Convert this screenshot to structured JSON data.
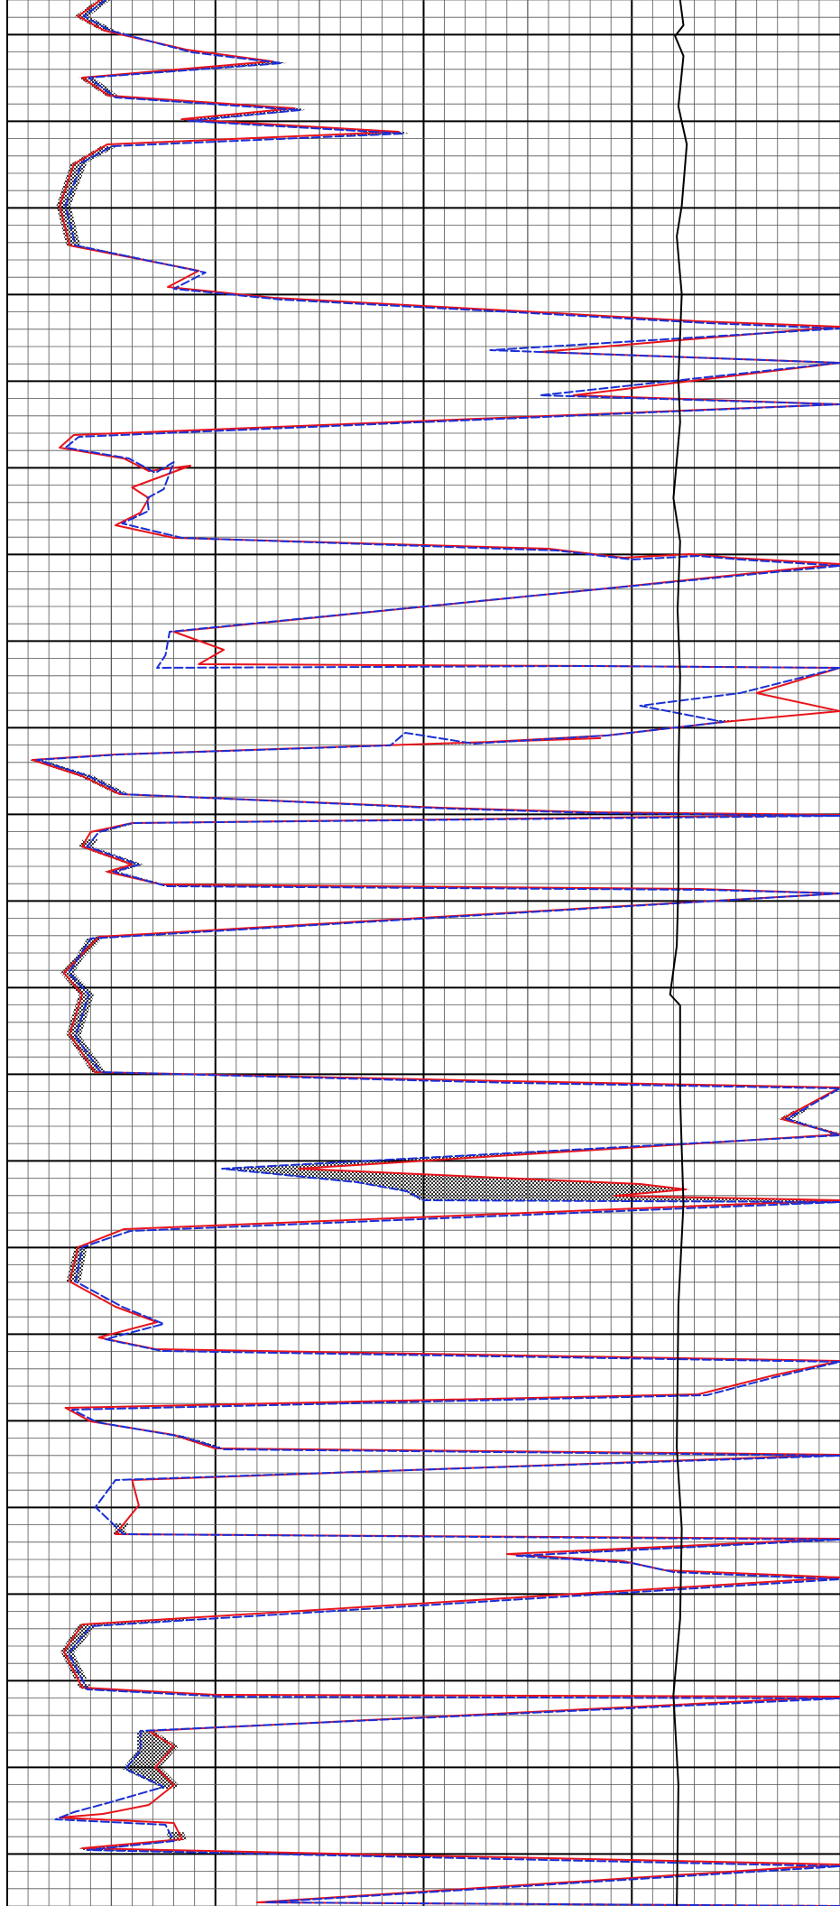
{
  "chart_data": {
    "type": "line",
    "title": "",
    "xlabel": "",
    "ylabel": "",
    "grid": true,
    "x_range": [
      0,
      1
    ],
    "y_range": [
      0,
      2112
    ],
    "colors": {
      "background": "#ffffff",
      "grid_major": "#000000",
      "grid_minor": "#555555",
      "shade_fill": "#444444",
      "series_a": "#e8141b",
      "series_b": "#1a2fd6",
      "series_c": "#000000"
    },
    "series": [
      {
        "id": "series-a",
        "style": "solid",
        "color": "#e8141b",
        "points": [
          [
            0.112,
            0
          ],
          [
            0.085,
            18
          ],
          [
            0.117,
            34
          ],
          [
            0.215,
            55
          ],
          [
            0.318,
            68
          ],
          [
            0.09,
            86
          ],
          [
            0.122,
            106
          ],
          [
            0.345,
            120
          ],
          [
            0.21,
            132
          ],
          [
            0.47,
            146
          ],
          [
            0.12,
            160
          ],
          [
            0.08,
            182
          ],
          [
            0.063,
            228
          ],
          [
            0.075,
            272
          ],
          [
            0.23,
            300
          ],
          [
            0.193,
            318
          ],
          [
            0.32,
            330
          ],
          [
            0.64,
            346
          ],
          [
            0.83,
            356
          ],
          [
            1.0,
            362
          ],
          [
            0.64,
            390
          ],
          [
            1.0,
            402
          ],
          [
            0.68,
            438
          ],
          [
            1.0,
            448
          ],
          [
            0.08,
            482
          ],
          [
            0.063,
            496
          ],
          [
            0.14,
            508
          ],
          [
            0.17,
            522
          ],
          [
            0.22,
            516
          ],
          [
            0.15,
            540
          ],
          [
            0.17,
            552
          ],
          [
            0.16,
            568
          ],
          [
            0.13,
            582
          ],
          [
            0.2,
            596
          ],
          [
            0.65,
            608
          ],
          [
            0.74,
            618
          ],
          [
            0.82,
            614
          ],
          [
            0.87,
            618
          ],
          [
            1.0,
            625
          ],
          [
            0.72,
            652
          ],
          [
            0.2,
            700
          ],
          [
            0.26,
            720
          ],
          [
            0.23,
            736
          ],
          [
            0.7,
            738
          ],
          [
            1.0,
            740
          ],
          [
            0.9,
            768
          ],
          [
            1.0,
            788
          ],
          [
            0.86,
            800
          ],
          [
            0.72,
            815
          ],
          [
            0.58,
            822
          ],
          [
            0.712,
            818
          ],
          [
            0.45,
            826
          ],
          [
            0.13,
            836
          ],
          [
            0.03,
            842
          ],
          [
            0.09,
            860
          ],
          [
            0.135,
            880
          ],
          [
            0.52,
            895
          ],
          [
            0.7,
            900
          ],
          [
            1.0,
            903
          ],
          [
            0.15,
            912
          ],
          [
            0.1,
            922
          ],
          [
            0.09,
            938
          ],
          [
            0.15,
            958
          ],
          [
            0.12,
            966
          ],
          [
            0.185,
            980
          ],
          [
            0.83,
            985
          ],
          [
            1.0,
            990
          ],
          [
            0.11,
            1038
          ],
          [
            0.068,
            1078
          ],
          [
            0.09,
            1102
          ],
          [
            0.075,
            1146
          ],
          [
            0.105,
            1188
          ],
          [
            0.6,
            1198
          ],
          [
            1.0,
            1205
          ],
          [
            0.93,
            1240
          ],
          [
            1.0,
            1257
          ],
          [
            0.35,
            1295
          ],
          [
            0.59,
            1305
          ],
          [
            0.76,
            1312
          ],
          [
            0.815,
            1318
          ],
          [
            0.73,
            1325
          ],
          [
            1.0,
            1330
          ],
          [
            0.14,
            1362
          ],
          [
            0.085,
            1382
          ],
          [
            0.075,
            1420
          ],
          [
            0.13,
            1448
          ],
          [
            0.18,
            1465
          ],
          [
            0.11,
            1482
          ],
          [
            0.178,
            1495
          ],
          [
            1.0,
            1508
          ],
          [
            0.92,
            1524
          ],
          [
            0.83,
            1545
          ],
          [
            0.07,
            1560
          ],
          [
            0.1,
            1575
          ],
          [
            0.2,
            1590
          ],
          [
            0.25,
            1605
          ],
          [
            0.8,
            1610
          ],
          [
            1.0,
            1612
          ],
          [
            0.15,
            1640
          ],
          [
            0.158,
            1668
          ],
          [
            0.13,
            1700
          ],
          [
            1.0,
            1705
          ],
          [
            0.6,
            1722
          ],
          [
            0.74,
            1730
          ],
          [
            0.79,
            1740
          ],
          [
            1.0,
            1748
          ],
          [
            0.09,
            1800
          ],
          [
            0.068,
            1830
          ],
          [
            0.09,
            1870
          ],
          [
            0.25,
            1878
          ],
          [
            1.0,
            1880
          ],
          [
            0.17,
            1918
          ],
          [
            0.2,
            1935
          ],
          [
            0.178,
            1958
          ],
          [
            0.2,
            1978
          ],
          [
            0.17,
            2000
          ],
          [
            0.115,
            2010
          ],
          [
            0.063,
            2014
          ],
          [
            0.2,
            2020
          ],
          [
            0.21,
            2038
          ],
          [
            0.09,
            2048
          ],
          [
            1.0,
            2066
          ],
          [
            0.3,
            2108
          ],
          [
            1.0,
            2112
          ]
        ]
      },
      {
        "id": "series-b",
        "style": "dashed",
        "color": "#1a2fd6",
        "points": [
          [
            0.118,
            0
          ],
          [
            0.092,
            18
          ],
          [
            0.124,
            34
          ],
          [
            0.222,
            58
          ],
          [
            0.33,
            70
          ],
          [
            0.098,
            86
          ],
          [
            0.13,
            108
          ],
          [
            0.352,
            122
          ],
          [
            0.218,
            134
          ],
          [
            0.476,
            148
          ],
          [
            0.126,
            162
          ],
          [
            0.09,
            180
          ],
          [
            0.07,
            228
          ],
          [
            0.082,
            272
          ],
          [
            0.238,
            302
          ],
          [
            0.2,
            320
          ],
          [
            0.33,
            332
          ],
          [
            0.65,
            348
          ],
          [
            0.84,
            358
          ],
          [
            1.0,
            364
          ],
          [
            0.58,
            388
          ],
          [
            1.0,
            402
          ],
          [
            0.64,
            438
          ],
          [
            1.0,
            448
          ],
          [
            0.086,
            484
          ],
          [
            0.07,
            496
          ],
          [
            0.146,
            508
          ],
          [
            0.178,
            524
          ],
          [
            0.2,
            512
          ],
          [
            0.188,
            542
          ],
          [
            0.168,
            552
          ],
          [
            0.17,
            566
          ],
          [
            0.138,
            580
          ],
          [
            0.21,
            596
          ],
          [
            0.66,
            610
          ],
          [
            0.75,
            620
          ],
          [
            0.83,
            616
          ],
          [
            0.88,
            620
          ],
          [
            1.0,
            627
          ],
          [
            0.72,
            652
          ],
          [
            0.195,
            700
          ],
          [
            0.19,
            726
          ],
          [
            0.18,
            740
          ],
          [
            0.7,
            738
          ],
          [
            1.0,
            740
          ],
          [
            0.88,
            768
          ],
          [
            0.76,
            782
          ],
          [
            0.86,
            800
          ],
          [
            0.72,
            815
          ],
          [
            0.56,
            824
          ],
          [
            0.478,
            812
          ],
          [
            0.46,
            826
          ],
          [
            0.136,
            836
          ],
          [
            0.036,
            842
          ],
          [
            0.098,
            860
          ],
          [
            0.14,
            880
          ],
          [
            0.53,
            896
          ],
          [
            0.71,
            901
          ],
          [
            1.0,
            904
          ],
          [
            0.15,
            912
          ],
          [
            0.11,
            922
          ],
          [
            0.096,
            938
          ],
          [
            0.158,
            958
          ],
          [
            0.128,
            966
          ],
          [
            0.192,
            982
          ],
          [
            0.84,
            986
          ],
          [
            1.0,
            990
          ],
          [
            0.1,
            1040
          ],
          [
            0.074,
            1078
          ],
          [
            0.098,
            1102
          ],
          [
            0.082,
            1148
          ],
          [
            0.112,
            1188
          ],
          [
            0.61,
            1200
          ],
          [
            1.0,
            1206
          ],
          [
            0.936,
            1240
          ],
          [
            1.0,
            1258
          ],
          [
            0.258,
            1295
          ],
          [
            0.42,
            1310
          ],
          [
            0.48,
            1320
          ],
          [
            0.5,
            1330
          ],
          [
            1.0,
            1332
          ],
          [
            0.148,
            1364
          ],
          [
            0.09,
            1382
          ],
          [
            0.082,
            1420
          ],
          [
            0.138,
            1448
          ],
          [
            0.188,
            1467
          ],
          [
            0.118,
            1484
          ],
          [
            0.186,
            1497
          ],
          [
            1.0,
            1509
          ],
          [
            0.922,
            1526
          ],
          [
            0.84,
            1546
          ],
          [
            0.078,
            1562
          ],
          [
            0.108,
            1576
          ],
          [
            0.21,
            1592
          ],
          [
            0.26,
            1606
          ],
          [
            0.81,
            1611
          ],
          [
            1.0,
            1613
          ],
          [
            0.13,
            1640
          ],
          [
            0.106,
            1670
          ],
          [
            0.14,
            1700
          ],
          [
            1.0,
            1706
          ],
          [
            0.612,
            1724
          ],
          [
            0.75,
            1732
          ],
          [
            0.8,
            1742
          ],
          [
            1.0,
            1750
          ],
          [
            0.1,
            1802
          ],
          [
            0.074,
            1832
          ],
          [
            0.096,
            1872
          ],
          [
            0.26,
            1880
          ],
          [
            1.0,
            1882
          ],
          [
            0.16,
            1918
          ],
          [
            0.16,
            1940
          ],
          [
            0.142,
            1960
          ],
          [
            0.188,
            1980
          ],
          [
            0.12,
            1998
          ],
          [
            0.08,
            2008
          ],
          [
            0.058,
            2016
          ],
          [
            0.19,
            2022
          ],
          [
            0.2,
            2040
          ],
          [
            0.096,
            2050
          ],
          [
            1.0,
            2068
          ],
          [
            0.31,
            2108
          ],
          [
            1.0,
            2112
          ]
        ]
      },
      {
        "id": "series-c",
        "style": "solid",
        "color": "#000000",
        "points": [
          [
            0.808,
            0
          ],
          [
            0.812,
            28
          ],
          [
            0.802,
            40
          ],
          [
            0.812,
            62
          ],
          [
            0.806,
            118
          ],
          [
            0.816,
            160
          ],
          [
            0.81,
            228
          ],
          [
            0.804,
            262
          ],
          [
            0.81,
            326
          ],
          [
            0.806,
            420
          ],
          [
            0.808,
            468
          ],
          [
            0.8,
            552
          ],
          [
            0.808,
            600
          ],
          [
            0.805,
            676
          ],
          [
            0.808,
            748
          ],
          [
            0.806,
            860
          ],
          [
            0.806,
            980
          ],
          [
            0.804,
            1048
          ],
          [
            0.796,
            1102
          ],
          [
            0.808,
            1114
          ],
          [
            0.808,
            1216
          ],
          [
            0.812,
            1334
          ],
          [
            0.806,
            1446
          ],
          [
            0.804,
            1604
          ],
          [
            0.81,
            1694
          ],
          [
            0.808,
            1794
          ],
          [
            0.8,
            1878
          ],
          [
            0.806,
            1978
          ],
          [
            0.804,
            2112
          ]
        ]
      }
    ],
    "shaded_bands": [
      [
        0,
        40
      ],
      [
        66,
        150
      ],
      [
        162,
        296
      ],
      [
        798,
        922
      ],
      [
        930,
        1190
      ],
      [
        1228,
        1334
      ],
      [
        1380,
        1420
      ],
      [
        1580,
        1640
      ],
      [
        1688,
        1720
      ],
      [
        1794,
        1860
      ],
      [
        1866,
        1876
      ],
      [
        1918,
        1982
      ],
      [
        2030,
        2058
      ],
      [
        2094,
        2112
      ]
    ]
  }
}
